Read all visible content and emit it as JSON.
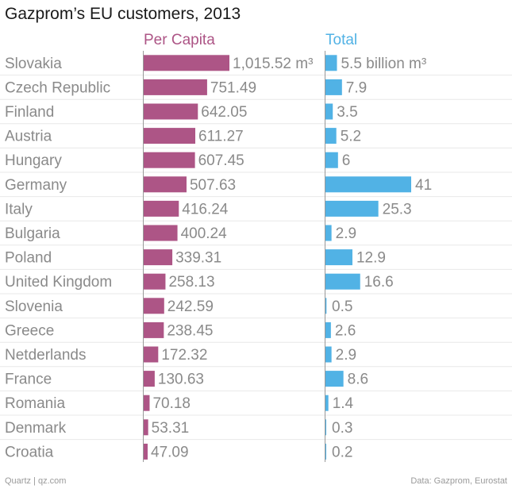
{
  "title": "Gazprom’s EU customers, 2013",
  "footer": {
    "left": "Quartz | qz.com",
    "right": "Data: Gazprom, Eurostat"
  },
  "colors": {
    "per_capita": "#ad5586",
    "total": "#51b2e5",
    "label": "#8a8a8a",
    "axis": "#999999",
    "grid": "#e8e8e8"
  },
  "chart_data": {
    "type": "bar",
    "orientation": "horizontal",
    "title": "Gazprom’s EU customers, 2013",
    "categories": [
      "Slovakia",
      "Czech Republic",
      "Finland",
      "Austria",
      "Hungary",
      "Germany",
      "Italy",
      "Bulgaria",
      "Poland",
      "United Kingdom",
      "Slovenia",
      "Greece",
      "Netderlands",
      "France",
      "Romania",
      "Denmark",
      "Croatia"
    ],
    "series": [
      {
        "name": "Per Capita",
        "unit": "m³",
        "values": [
          1015.52,
          751.49,
          642.05,
          611.27,
          607.45,
          507.63,
          416.24,
          400.24,
          339.31,
          258.13,
          242.59,
          238.45,
          172.32,
          130.63,
          70.18,
          53.31,
          47.09
        ],
        "labels": [
          "1,015.52 m³",
          "751.49",
          "642.05",
          "611.27",
          "607.45",
          "507.63",
          "416.24",
          "400.24",
          "339.31",
          "258.13",
          "242.59",
          "238.45",
          "172.32",
          "130.63",
          "70.18",
          "53.31",
          "47.09"
        ],
        "xlim": [
          0,
          1015.52
        ]
      },
      {
        "name": "Total",
        "unit": "billion m³",
        "values": [
          5.5,
          7.9,
          3.5,
          5.2,
          6,
          41,
          25.3,
          2.9,
          12.9,
          16.6,
          0.5,
          2.6,
          2.9,
          8.6,
          1.4,
          0.3,
          0.2
        ],
        "labels": [
          "5.5 billion m³",
          "7.9",
          "3.5",
          "5.2",
          "6",
          "41",
          "25.3",
          "2.9",
          "12.9",
          "16.6",
          "0.5",
          "2.6",
          "2.9",
          "8.6",
          "1.4",
          "0.3",
          "0.2"
        ],
        "xlim": [
          0,
          41
        ]
      }
    ]
  }
}
